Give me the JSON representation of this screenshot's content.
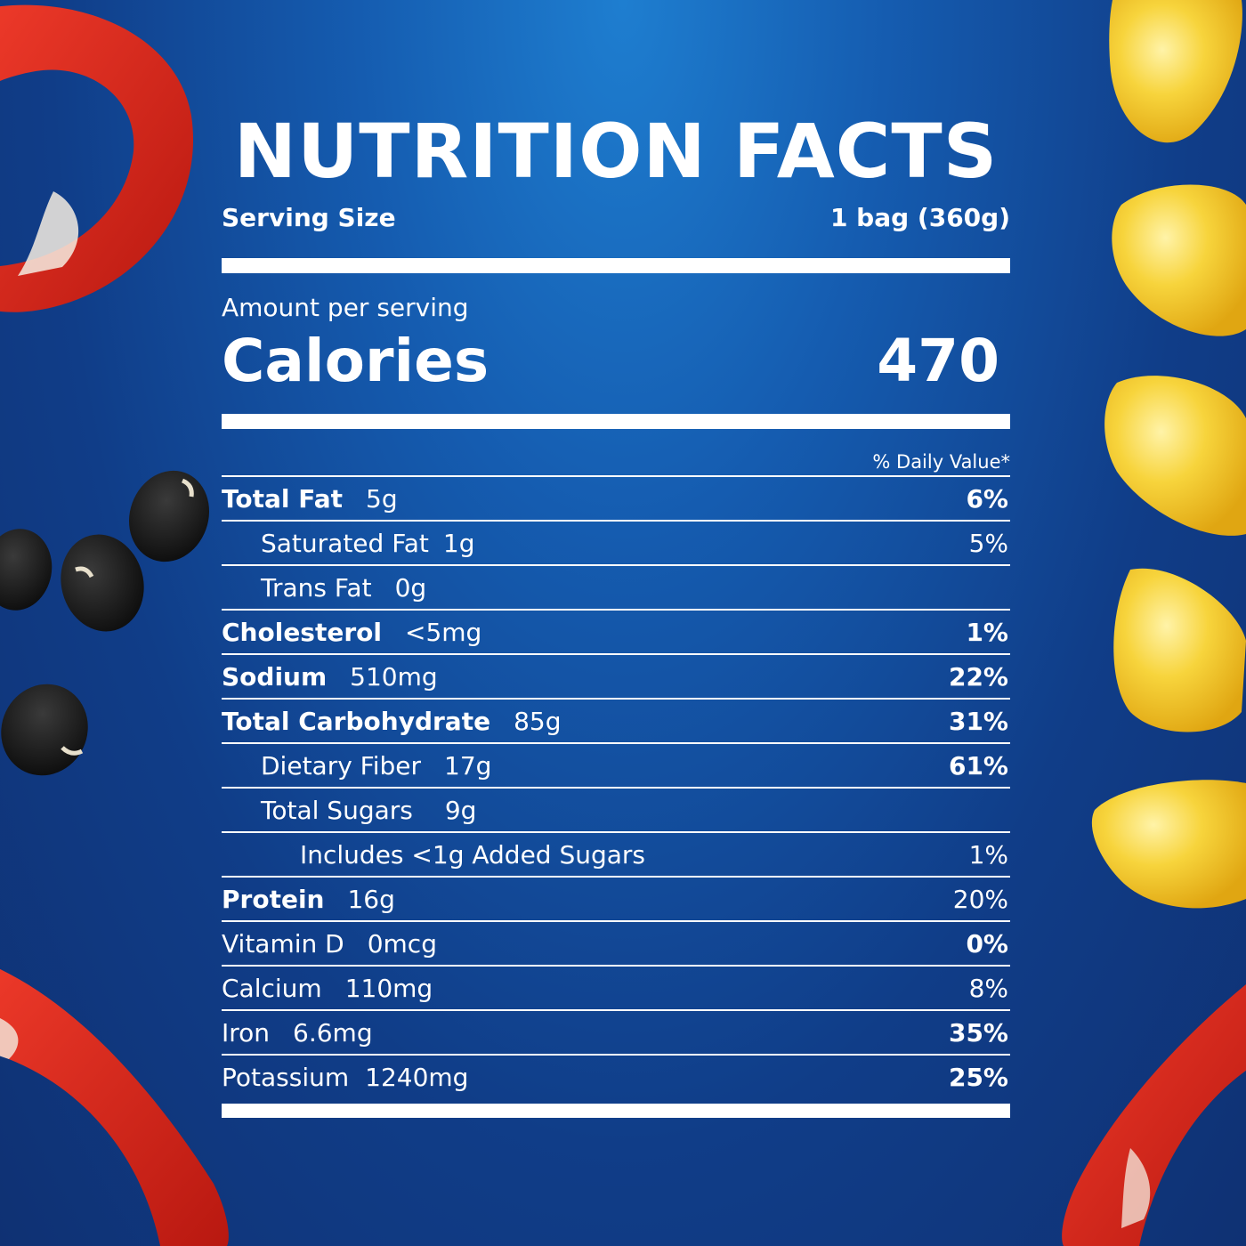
{
  "title": "NUTRITION FACTS",
  "serving": {
    "label": "Serving Size",
    "value": "1 bag (360g)"
  },
  "amount_label": "Amount per serving",
  "calories": {
    "label": "Calories",
    "value": "470"
  },
  "dv_header": "% Daily Value*",
  "nutrients": [
    {
      "name": "Total Fat",
      "amount": "5g",
      "dv": "6%"
    },
    {
      "name": "Saturated Fat",
      "amount": "1g",
      "dv": "5%"
    },
    {
      "name": "Trans Fat",
      "amount": "0g",
      "dv": ""
    },
    {
      "name": "Cholesterol",
      "amount": "<5mg",
      "dv": "1%"
    },
    {
      "name": "Sodium",
      "amount": "510mg",
      "dv": "22%"
    },
    {
      "name": "Total Carbohydrate",
      "amount": "85g",
      "dv": "31%"
    },
    {
      "name": "Dietary Fiber",
      "amount": "17g",
      "dv": "61%"
    },
    {
      "name": "Total Sugars",
      "amount": "9g",
      "dv": ""
    },
    {
      "name": "Includes <1g Added Sugars",
      "amount": "",
      "dv": "1%"
    },
    {
      "name": "Protein",
      "amount": "16g",
      "dv": "20%"
    },
    {
      "name": "Vitamin D",
      "amount": "0mcg",
      "dv": "0%"
    },
    {
      "name": "Calcium",
      "amount": "110mg",
      "dv": "8%"
    },
    {
      "name": "Iron",
      "amount": "6.6mg",
      "dv": "35%"
    },
    {
      "name": "Potassium",
      "amount": "1240mg",
      "dv": "25%"
    }
  ],
  "colors": {
    "background": "#155cb0",
    "text": "#ffffff",
    "pepper": "#d6281e",
    "corn": "#f3c21e",
    "beans": "#1a1a1a"
  },
  "decorations": [
    "red-pepper-slice",
    "black-bean",
    "corn-kernel"
  ]
}
